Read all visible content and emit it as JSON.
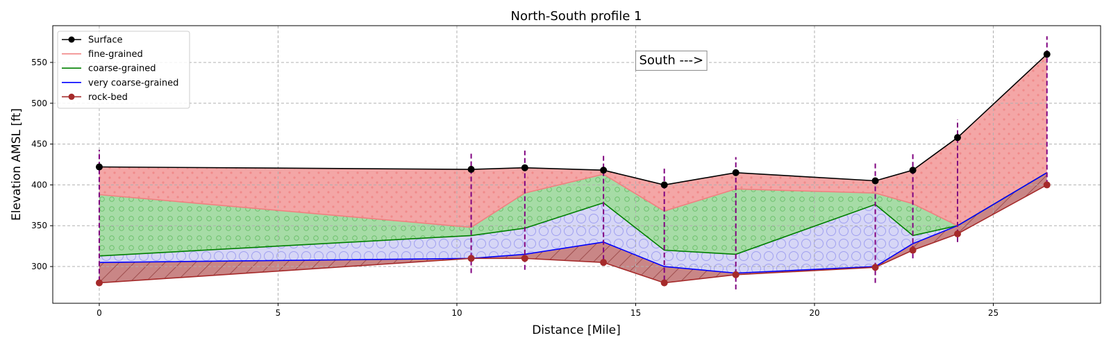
{
  "chart_data": {
    "type": "area",
    "title": "North-South profile 1",
    "xlabel": "Distance [Mile]",
    "ylabel": "Elevation AMSL [ft]",
    "xlim": [
      -1.3,
      28.0
    ],
    "ylim": [
      255,
      595
    ],
    "xticks": [
      0,
      5,
      10,
      15,
      20,
      25
    ],
    "yticks": [
      300,
      350,
      400,
      450,
      500,
      550
    ],
    "grid": true,
    "legend_position": "top-left",
    "x": [
      0,
      10.4,
      11.9,
      14.1,
      15.8,
      17.8,
      21.7,
      22.75,
      24.0,
      26.5
    ],
    "series": [
      {
        "name": "Surface",
        "color": "#000000",
        "marker": "circle",
        "fill": "#f4a6a6",
        "fill_pattern": "dots",
        "values": [
          422,
          419,
          421,
          418,
          400,
          415,
          405,
          418,
          458,
          560
        ]
      },
      {
        "name": "fine-grained",
        "color": "#f08080",
        "fill": "#a6dca6",
        "fill_pattern": "small-circles",
        "values": [
          388,
          348,
          390,
          413,
          368,
          395,
          390,
          377,
          350,
          415
        ]
      },
      {
        "name": "coarse-grained",
        "color": "#008000",
        "fill": "#d6d6f6",
        "fill_pattern": "large-circles",
        "values": [
          313,
          338,
          347,
          378,
          320,
          315,
          376,
          338,
          350,
          415
        ]
      },
      {
        "name": "very coarse-grained",
        "color": "#0000ff",
        "fill": "#c98686",
        "fill_pattern": "diagonal-hatch",
        "values": [
          305,
          310,
          315,
          330,
          300,
          292,
          300,
          328,
          350,
          415
        ]
      },
      {
        "name": "rock-bed",
        "color": "#a52a2a",
        "marker": "circle",
        "values": [
          280,
          310,
          310,
          305,
          280,
          290,
          299,
          320,
          340,
          400
        ]
      }
    ],
    "boreholes": {
      "color": "#800080",
      "style": "dashed",
      "intervals": [
        [
          0,
          282,
          443
        ],
        [
          10.4,
          292,
          440
        ],
        [
          11.9,
          296,
          442
        ],
        [
          14.1,
          308,
          438
        ],
        [
          15.8,
          283,
          420
        ],
        [
          17.8,
          272,
          434
        ],
        [
          21.7,
          280,
          427
        ],
        [
          22.75,
          310,
          438
        ],
        [
          24.0,
          330,
          480
        ],
        [
          26.5,
          400,
          582
        ]
      ]
    },
    "annotations": [
      {
        "text": "South --->",
        "x": 15.0,
        "y": 553
      }
    ]
  }
}
